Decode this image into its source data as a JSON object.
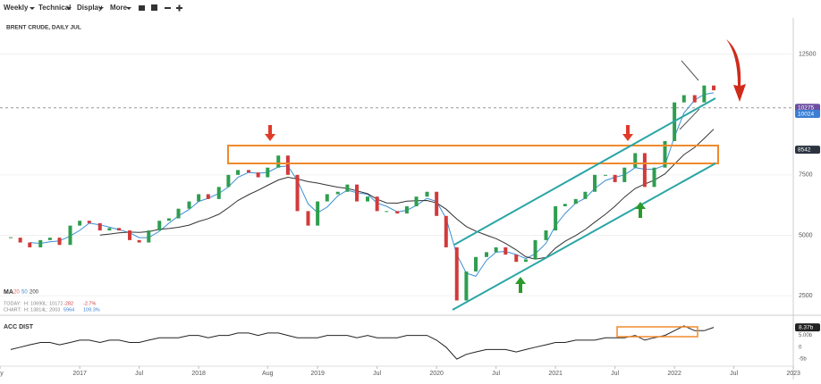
{
  "toolbar": {
    "items": [
      "Weekly",
      "Technical",
      "Display",
      "More"
    ]
  },
  "chart_data": {
    "type": "candlestick",
    "title": "BRENT CRUDE, DAILY JUL",
    "x": [
      2016.42,
      2016.5,
      2016.58,
      2016.67,
      2016.75,
      2016.83,
      2016.92,
      2017.0,
      2017.08,
      2017.17,
      2017.25,
      2017.33,
      2017.42,
      2017.5,
      2017.58,
      2017.67,
      2017.75,
      2017.83,
      2017.92,
      2018.0,
      2018.08,
      2018.17,
      2018.25,
      2018.33,
      2018.42,
      2018.5,
      2018.58,
      2018.67,
      2018.75,
      2018.83,
      2018.92,
      2019.0,
      2019.08,
      2019.17,
      2019.25,
      2019.33,
      2019.42,
      2019.5,
      2019.58,
      2019.67,
      2019.75,
      2019.83,
      2019.92,
      2020.0,
      2020.08,
      2020.17,
      2020.25,
      2020.33,
      2020.42,
      2020.5,
      2020.58,
      2020.67,
      2020.75,
      2020.83,
      2020.92,
      2021.0,
      2021.08,
      2021.17,
      2021.25,
      2021.33,
      2021.42,
      2021.5,
      2021.58,
      2021.67,
      2021.75,
      2021.83,
      2021.92,
      2022.0,
      2022.08,
      2022.17,
      2022.25,
      2022.33
    ],
    "close": [
      4900,
      4700,
      4500,
      4800,
      4900,
      4600,
      5400,
      5600,
      5500,
      5200,
      5300,
      5200,
      4800,
      4700,
      5200,
      5600,
      5700,
      6100,
      6400,
      6700,
      6500,
      7000,
      7500,
      7700,
      7600,
      7400,
      7800,
      8300,
      7500,
      6000,
      5400,
      6400,
      6700,
      6800,
      7100,
      6400,
      6600,
      6000,
      6000,
      5900,
      6200,
      6600,
      6800,
      5800,
      4500,
      2300,
      3500,
      4100,
      4300,
      4500,
      4200,
      3900,
      4000,
      4800,
      5200,
      6200,
      6300,
      6500,
      6800,
      7500,
      7500,
      7200,
      7800,
      8400,
      7000,
      7800,
      8900,
      10500,
      10800,
      10500,
      11200,
      11000
    ],
    "up_color": "#2e9e4f",
    "down_color": "#d23a3a",
    "xlim": [
      2016.38,
      2023.05
    ],
    "xticks": [
      {
        "value": 2016.33,
        "label": "ay"
      },
      2017,
      {
        "value": 2017.5,
        "label": "Jul"
      },
      2018,
      {
        "value": 2018.58,
        "label": "Aug"
      },
      2019,
      {
        "value": 2019.5,
        "label": "Jul"
      },
      2020,
      {
        "value": 2020.5,
        "label": "Jul"
      },
      2021,
      {
        "value": 2021.5,
        "label": "Jul"
      },
      2022,
      {
        "value": 2022.5,
        "label": "Jul"
      },
      2023
    ],
    "ylim": [
      1800,
      14000
    ],
    "yticks": [
      2500,
      5000,
      7500,
      12500
    ],
    "price_labels": [
      {
        "value": 10275,
        "color": "#6b4fa0"
      },
      {
        "value": 10024,
        "color": "#3a7fd5"
      },
      {
        "value": 8542,
        "color": "#2b3340"
      }
    ],
    "moving_averages": {
      "label": "MA",
      "periods": [
        {
          "period": 20,
          "color": "#e06060"
        },
        {
          "period": 50,
          "color": "#3a8fd5"
        },
        {
          "period": 200,
          "color": "#333333"
        }
      ]
    },
    "stats": [
      {
        "label": "TODAY:",
        "items": [
          "H: 10690",
          "L: 10172",
          "-282",
          "-2.7%"
        ]
      },
      {
        "label": "CHART:",
        "items": [
          "H: 13814",
          "L: 2003",
          "5964",
          "109.3%"
        ]
      }
    ],
    "acc_dist": {
      "title": "ACC DIST",
      "color": "#222222",
      "values": [
        -1,
        0,
        1,
        2,
        2,
        1,
        2,
        3,
        3,
        2,
        3,
        3,
        2,
        2,
        3,
        4,
        4,
        4,
        5,
        5,
        4,
        5,
        5,
        6,
        6,
        5,
        6,
        6,
        5,
        4,
        4,
        4,
        5,
        5,
        5,
        4,
        5,
        4,
        4,
        4,
        5,
        5,
        5,
        3,
        0,
        -5,
        -3,
        -2,
        -1,
        -1,
        -1,
        -2,
        -1,
        0,
        1,
        2,
        2,
        3,
        3,
        3,
        4,
        4,
        4,
        5,
        3,
        4,
        5,
        7,
        9,
        7,
        7,
        8.37
      ],
      "ylim": [
        -8,
        12
      ],
      "yticks": [
        {
          "value": 8.37,
          "label": "8.37b"
        },
        {
          "value": 5,
          "label": "5.00b"
        },
        0,
        {
          "value": -5,
          "label": "-5b"
        }
      ]
    }
  }
}
